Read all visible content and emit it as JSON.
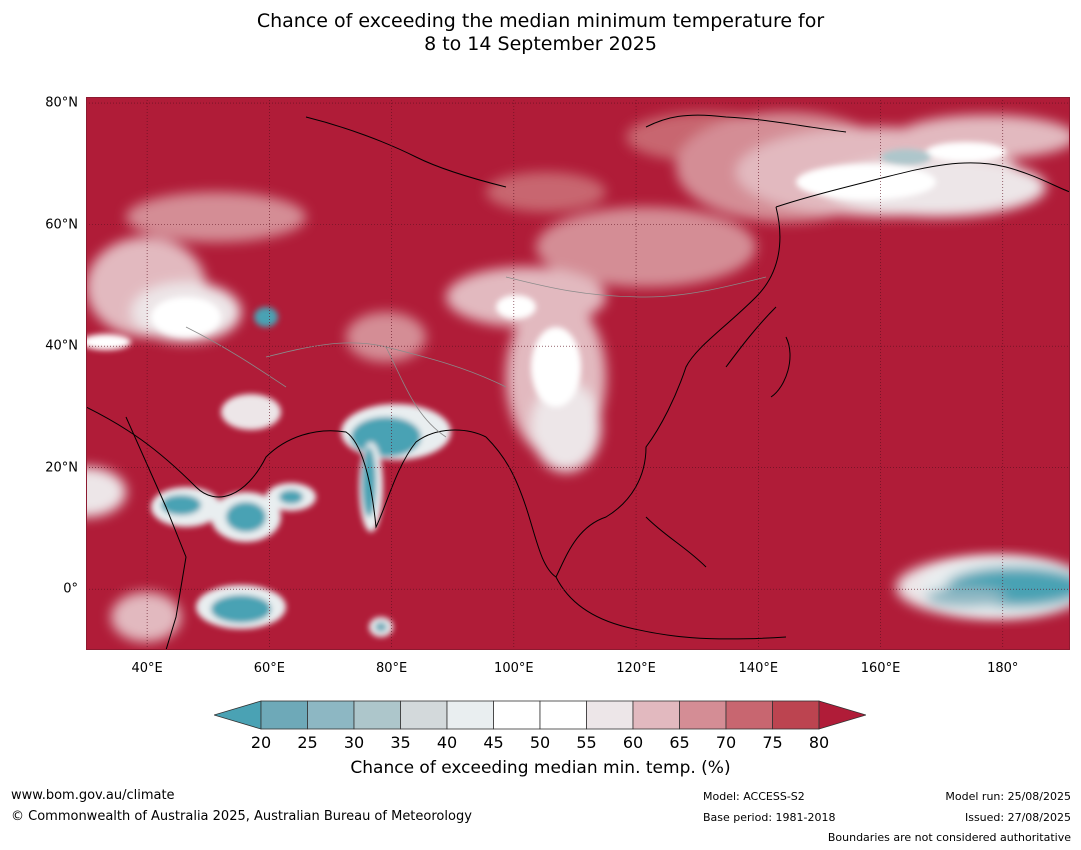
{
  "title": {
    "line1": "Chance of exceeding the median minimum temperature for",
    "line2": "8 to 14 September 2025"
  },
  "map": {
    "lon_range": [
      30,
      191
    ],
    "lat_range": [
      -10,
      81
    ],
    "grid": true,
    "lat_ticks": [
      {
        "value": 80,
        "label": "80°N"
      },
      {
        "value": 60,
        "label": "60°N"
      },
      {
        "value": 40,
        "label": "40°N"
      },
      {
        "value": 20,
        "label": "20°N"
      },
      {
        "value": 0,
        "label": "0°"
      }
    ],
    "lon_ticks": [
      {
        "value": 40,
        "label": "40°E"
      },
      {
        "value": 60,
        "label": "60°E"
      },
      {
        "value": 80,
        "label": "80°E"
      },
      {
        "value": 100,
        "label": "100°E"
      },
      {
        "value": 120,
        "label": "120°E"
      },
      {
        "value": 140,
        "label": "140°E"
      },
      {
        "value": 160,
        "label": "160°E"
      },
      {
        "value": 180,
        "label": "180°"
      }
    ],
    "background_color": "#b01c38"
  },
  "colorbar": {
    "ticks": [
      "20",
      "25",
      "30",
      "35",
      "40",
      "45",
      "50",
      "55",
      "60",
      "65",
      "70",
      "75",
      "80"
    ],
    "colors": [
      "#4aa2b4",
      "#6ea9b8",
      "#8db7c3",
      "#adc6cb",
      "#d3d9db",
      "#e9eef0",
      "#ffffff",
      "#ffffff",
      "#ede6e8",
      "#e2b9bf",
      "#d48d95",
      "#c86670",
      "#bc4450",
      "#b01c38"
    ],
    "label": "Chance of exceeding median min. temp. (%)"
  },
  "footer": {
    "website": "www.bom.gov.au/climate",
    "copyright": "© Commonwealth of Australia 2025, Australian Bureau of Meteorology",
    "model": "Model: ACCESS-S2",
    "base_period": "Base period: 1981-2018",
    "model_run": "Model run: 25/08/2025",
    "issued": "Issued: 27/08/2025",
    "boundaries": "Boundaries are not considered authoritative"
  }
}
